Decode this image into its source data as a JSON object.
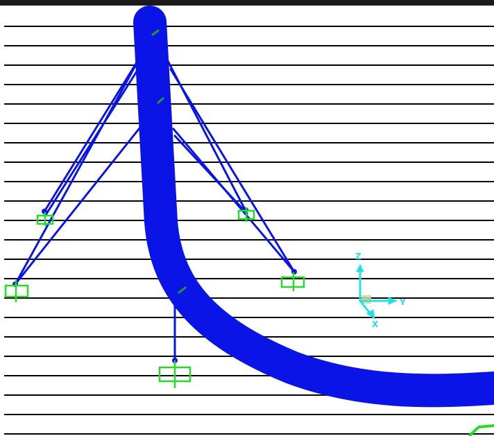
{
  "viewport": {
    "background_color": "#ffffff",
    "grid_line_color": "#000000",
    "frame_color": "#1a1a1a"
  },
  "model": {
    "member_color": "#0a14e6",
    "support_color": "#22dd22",
    "local_axis_color": "#1aa02a"
  },
  "axes_triad": {
    "color": "#22e0e8",
    "origin_marker_color": "#d8d090",
    "labels": {
      "z": "Z",
      "y": "Y",
      "x": "X"
    }
  }
}
